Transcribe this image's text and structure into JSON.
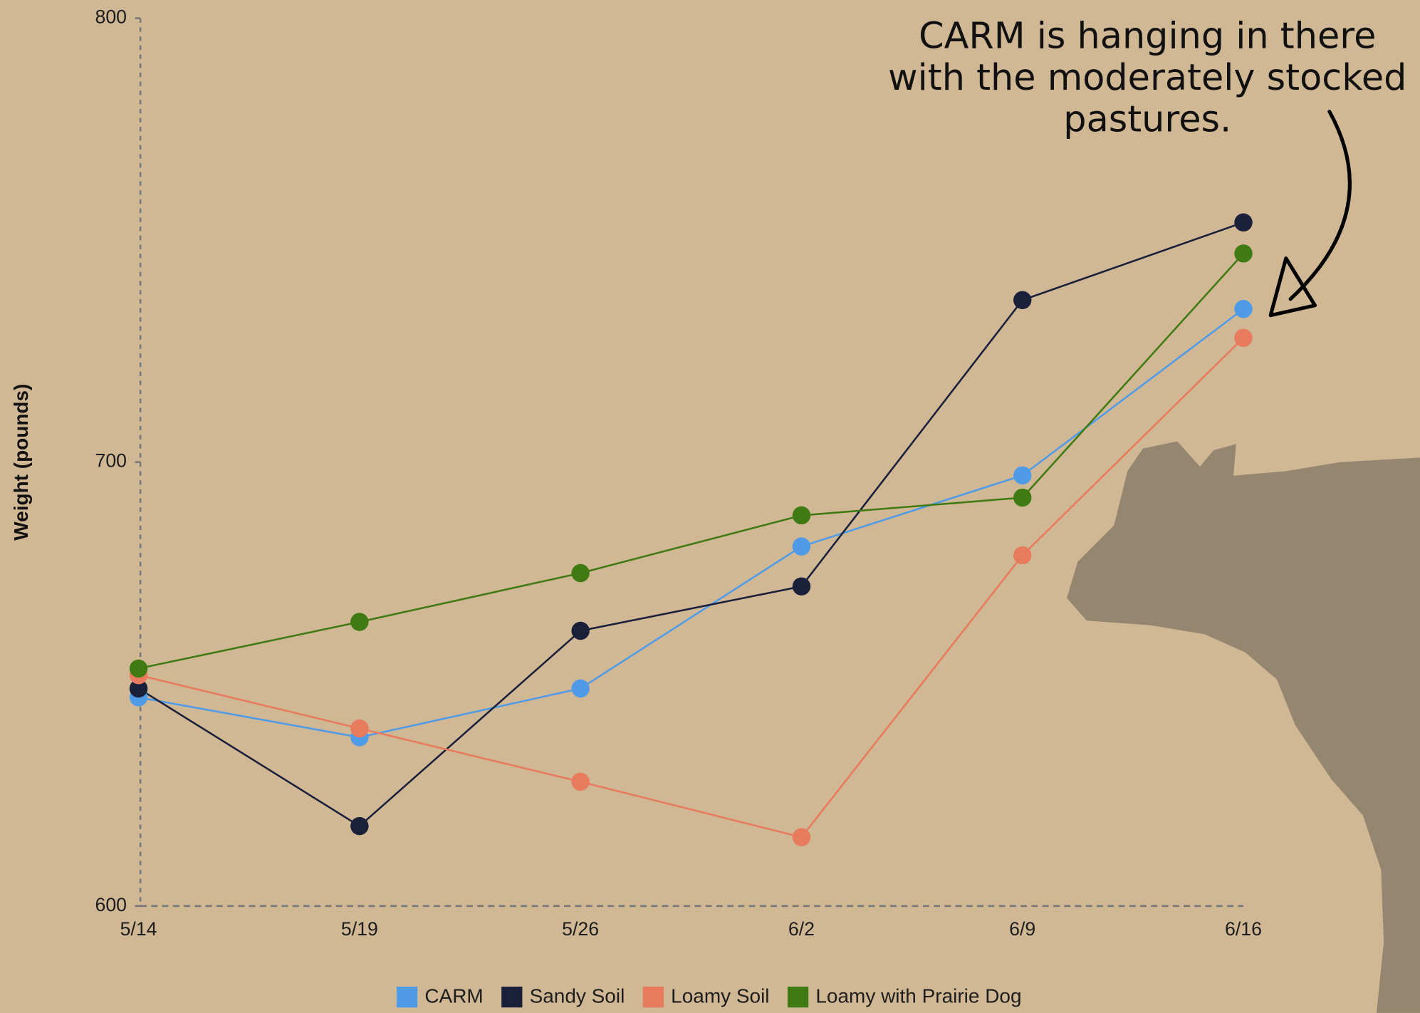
{
  "chart_data": {
    "type": "line",
    "ylabel": "Weight (pounds)",
    "annotation": [
      "CARM is hanging in there",
      "with the moderately stocked",
      "pastures."
    ],
    "categories": [
      "5/14",
      "5/19",
      "5/26",
      "6/2",
      "6/9",
      "6/16"
    ],
    "series": [
      {
        "name": "CARM",
        "color": "#4f9be8",
        "values": [
          647,
          638,
          649,
          681,
          697,
          734.5
        ]
      },
      {
        "name": "Sandy Soil",
        "color": "#1a1f3a",
        "values": [
          649,
          618,
          662,
          672,
          736.5,
          754
        ]
      },
      {
        "name": "Loamy Soil",
        "color": "#e87a5d",
        "values": [
          652,
          640,
          628,
          615.5,
          679,
          728
        ]
      },
      {
        "name": "Loamy with Prairie Dog",
        "color": "#3f7a12",
        "values": [
          653.5,
          664,
          675,
          688,
          692,
          747
        ]
      }
    ],
    "ylim": [
      600,
      800
    ],
    "yticks": [
      600,
      700,
      800
    ]
  }
}
